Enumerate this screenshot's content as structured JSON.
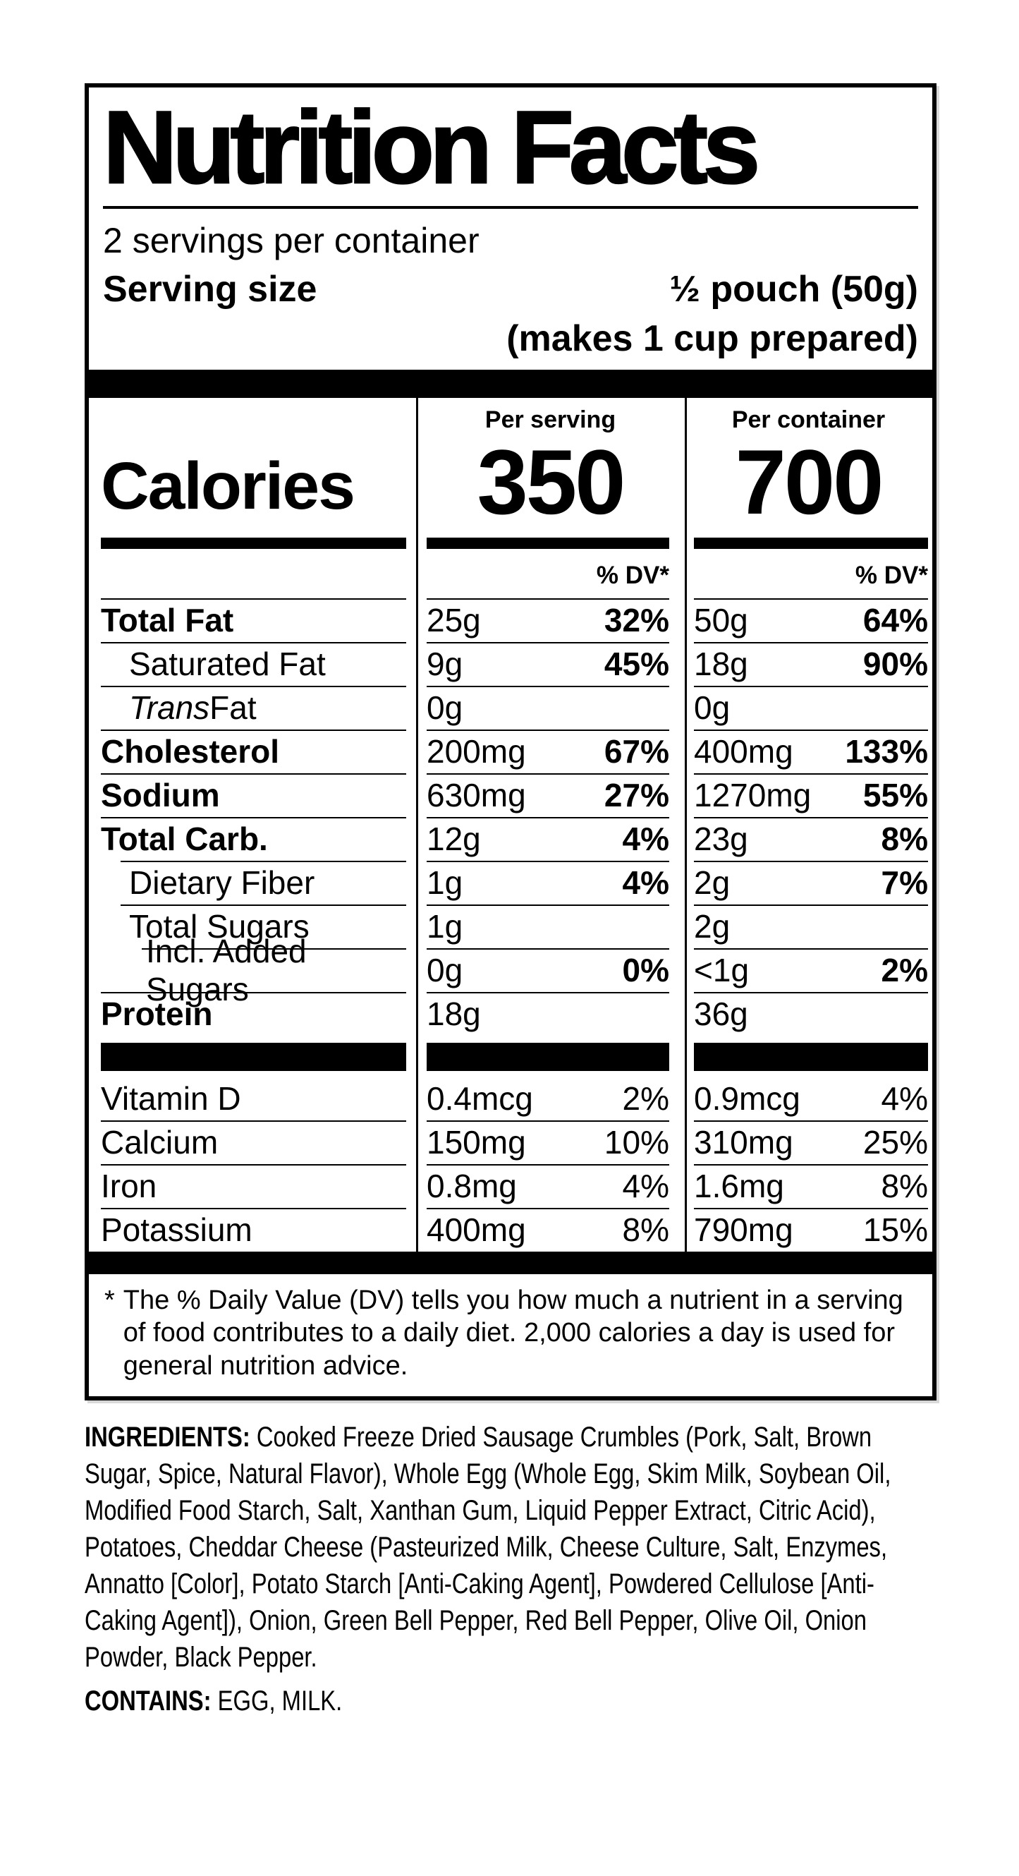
{
  "colors": {
    "ink": "#000000",
    "paper": "#ffffff"
  },
  "label": {
    "title": "Nutrition Facts",
    "servings_per_container": "2 servings per container",
    "serving_size_label": "Serving size",
    "serving_size_value": "½ pouch (50g)",
    "serving_size_note": "(makes 1 cup prepared)",
    "columns": {
      "per_serving": "Per serving",
      "per_container": "Per container"
    },
    "calories": {
      "label": "Calories",
      "per_serving": "350",
      "per_container": "700"
    },
    "dv_header": "% DV*",
    "rows": [
      {
        "name": "Total Fat",
        "ps_amt": "25g",
        "ps_dv": "32%",
        "pc_amt": "50g",
        "pc_dv": "64%"
      },
      {
        "name": "Saturated Fat",
        "ps_amt": "9g",
        "ps_dv": "45%",
        "pc_amt": "18g",
        "pc_dv": "90%"
      },
      {
        "name_italic": "Trans",
        "name": " Fat",
        "ps_amt": "0g",
        "ps_dv": "",
        "pc_amt": "0g",
        "pc_dv": ""
      },
      {
        "name": "Cholesterol",
        "ps_amt": "200mg",
        "ps_dv": "67%",
        "pc_amt": "400mg",
        "pc_dv": "133%"
      },
      {
        "name": "Sodium",
        "ps_amt": "630mg",
        "ps_dv": "27%",
        "pc_amt": "1270mg",
        "pc_dv": "55%"
      },
      {
        "name": "Total Carb.",
        "ps_amt": "12g",
        "ps_dv": "4%",
        "pc_amt": "23g",
        "pc_dv": "8%"
      },
      {
        "name": "Dietary Fiber",
        "ps_amt": "1g",
        "ps_dv": "4%",
        "pc_amt": "2g",
        "pc_dv": "7%"
      },
      {
        "name": "Total Sugars",
        "ps_amt": "1g",
        "ps_dv": "",
        "pc_amt": "2g",
        "pc_dv": ""
      },
      {
        "name": "Incl. Added Sugars",
        "ps_amt": "0g",
        "ps_dv": "0%",
        "pc_amt": "<1g",
        "pc_dv": "2%"
      },
      {
        "name": "Protein",
        "ps_amt": "18g",
        "ps_dv": "",
        "pc_amt": "36g",
        "pc_dv": ""
      }
    ],
    "vitamins": [
      {
        "name": "Vitamin D",
        "ps_amt": "0.4mcg",
        "ps_dv": "2%",
        "pc_amt": "0.9mcg",
        "pc_dv": "4%"
      },
      {
        "name": "Calcium",
        "ps_amt": "150mg",
        "ps_dv": "10%",
        "pc_amt": "310mg",
        "pc_dv": "25%"
      },
      {
        "name": "Iron",
        "ps_amt": "0.8mg",
        "ps_dv": "4%",
        "pc_amt": "1.6mg",
        "pc_dv": "8%"
      },
      {
        "name": "Potassium",
        "ps_amt": "400mg",
        "ps_dv": "8%",
        "pc_amt": "790mg",
        "pc_dv": "15%"
      }
    ],
    "footnote_marker": "*",
    "footnote_text": "The % Daily Value (DV) tells you how much a nutrient in a serving of food contributes to a daily diet. 2,000 calories a day is used for general nutrition advice."
  },
  "ingredients": {
    "label": "INGREDIENTS:",
    "text": " Cooked Freeze Dried Sausage Crumbles (Pork, Salt, Brown Sugar, Spice, Natural Flavor), Whole Egg (Whole Egg, Skim Milk, Soybean Oil, Modified Food Starch, Salt, Xanthan Gum, Liquid Pepper Extract, Citric Acid), Potatoes, Cheddar Cheese (Pasteurized Milk, Cheese Culture, Salt, Enzymes, Annatto [Color], Potato Starch [Anti-Caking Agent], Powdered Cellulose [Anti-Caking Agent]), Onion, Green Bell Pepper, Red Bell Pepper, Olive Oil, Onion Powder, Black Pepper.",
    "contains_label": "CONTAINS:",
    "contains_text": " EGG, MILK."
  }
}
